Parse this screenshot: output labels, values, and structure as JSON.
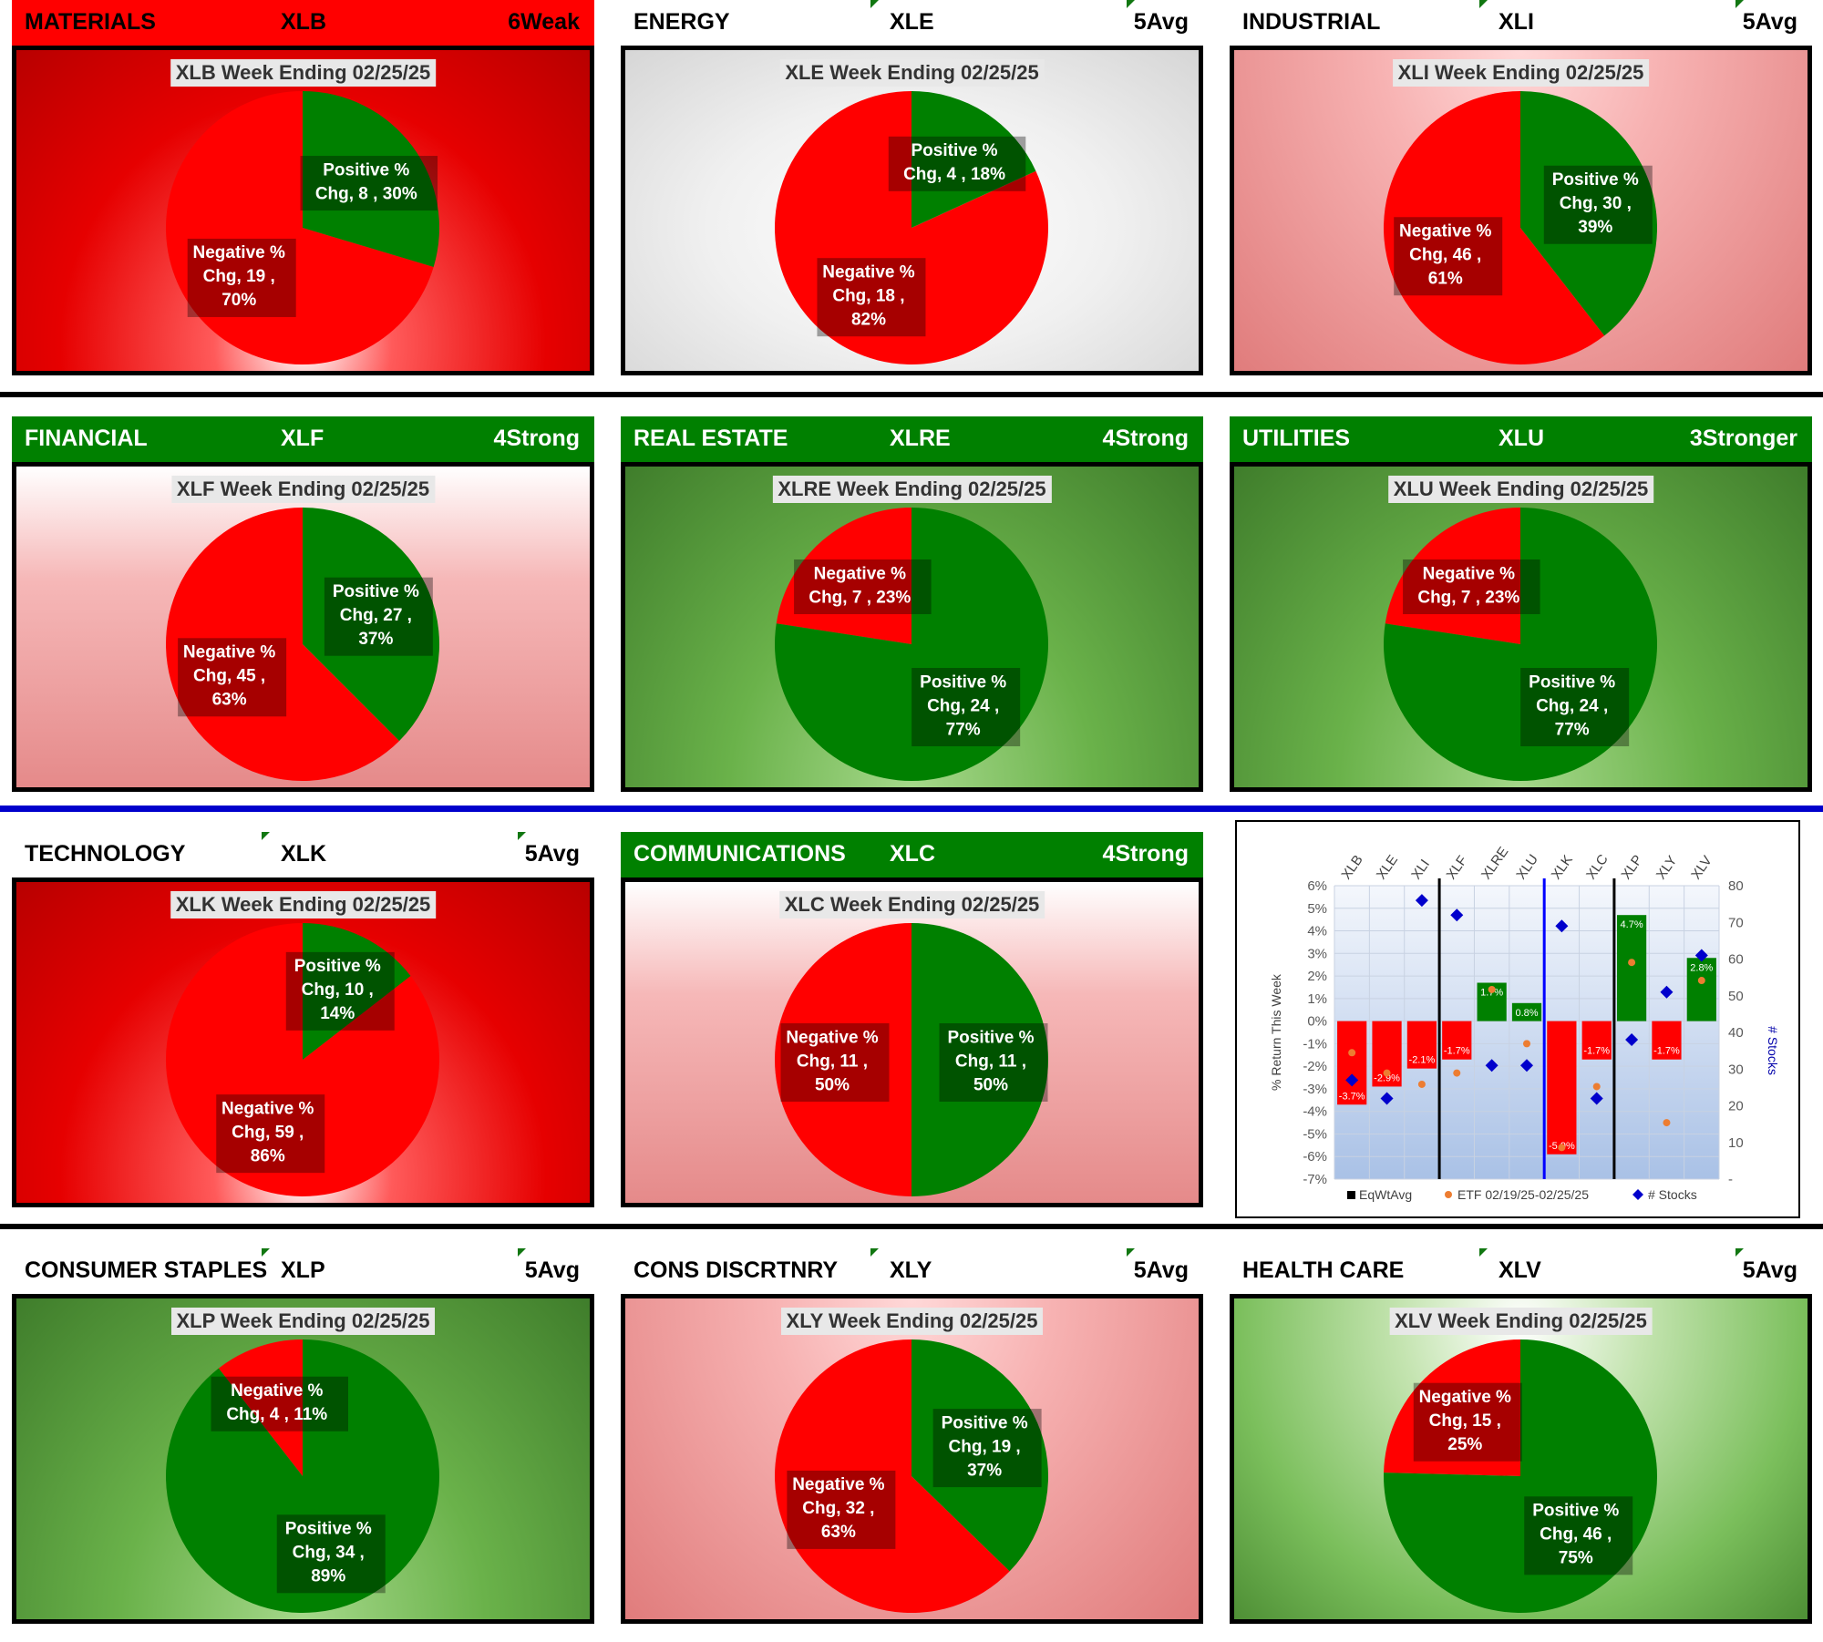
{
  "panels": [
    {
      "sector": "MATERIALS",
      "ticker": "XLB",
      "rating": "6Weak",
      "title": "XLB Week Ending 02/25/25",
      "positive_count": 8,
      "negative_count": 19,
      "positive_label": [
        "Positive %",
        "Chg,  8 , 30%"
      ],
      "negative_label": [
        "Negative %",
        "Chg,  19 ,",
        "70%"
      ]
    },
    {
      "sector": "ENERGY",
      "ticker": "XLE",
      "rating": "5Avg",
      "title": "XLE Week Ending 02/25/25",
      "positive_count": 4,
      "negative_count": 18,
      "positive_label": [
        "Positive %",
        "Chg,  4 , 18%"
      ],
      "negative_label": [
        "Negative %",
        "Chg,  18 ,",
        "82%"
      ]
    },
    {
      "sector": "INDUSTRIAL",
      "ticker": "XLI",
      "rating": "5Avg",
      "title": "XLI Week Ending 02/25/25",
      "positive_count": 30,
      "negative_count": 46,
      "positive_label": [
        "Positive %",
        "Chg,  30 ,",
        "39%"
      ],
      "negative_label": [
        "Negative %",
        "Chg,  46 ,",
        "61%"
      ]
    },
    {
      "sector": "FINANCIAL",
      "ticker": "XLF",
      "rating": "4Strong",
      "title": "XLF Week Ending 02/25/25",
      "positive_count": 27,
      "negative_count": 45,
      "positive_label": [
        "Positive %",
        "Chg,  27 ,",
        "37%"
      ],
      "negative_label": [
        "Negative %",
        "Chg,  45 ,",
        "63%"
      ]
    },
    {
      "sector": "REAL ESTATE",
      "ticker": "XLRE",
      "rating": "4Strong",
      "title": "XLRE Week Ending 02/25/25",
      "positive_count": 24,
      "negative_count": 7,
      "positive_label": [
        "Positive %",
        "Chg,  24 ,",
        "77%"
      ],
      "negative_label": [
        "Negative %",
        "Chg,  7 , 23%"
      ]
    },
    {
      "sector": "UTILITIES",
      "ticker": "XLU",
      "rating": "3Stronger",
      "title": "XLU Week Ending 02/25/25",
      "positive_count": 24,
      "negative_count": 7,
      "positive_label": [
        "Positive %",
        "Chg,  24 ,",
        "77%"
      ],
      "negative_label": [
        "Negative %",
        "Chg,  7 , 23%"
      ]
    },
    {
      "sector": "TECHNOLOGY",
      "ticker": "XLK",
      "rating": "5Avg",
      "title": "XLK Week Ending 02/25/25",
      "positive_count": 10,
      "negative_count": 59,
      "positive_label": [
        "Positive %",
        "Chg,  10 ,",
        "14%"
      ],
      "negative_label": [
        "Negative %",
        "Chg,  59 ,",
        "86%"
      ]
    },
    {
      "sector": "COMMUNICATIONS",
      "ticker": "XLC",
      "rating": "4Strong",
      "title": "XLC Week Ending 02/25/25",
      "positive_count": 11,
      "negative_count": 11,
      "positive_label": [
        "Positive %",
        "Chg,  11 ,",
        "50%"
      ],
      "negative_label": [
        "Negative %",
        "Chg,  11 ,",
        "50%"
      ]
    },
    null,
    {
      "sector": "CONSUMER STAPLES",
      "ticker": "XLP",
      "rating": "5Avg",
      "title": "XLP Week Ending 02/25/25",
      "positive_count": 34,
      "negative_count": 4,
      "positive_label": [
        "Positive %",
        "Chg,  34 ,",
        "89%"
      ],
      "negative_label": [
        "Negative %",
        "Chg,  4 , 11%"
      ]
    },
    {
      "sector": "CONS DISCRTNRY",
      "ticker": "XLY",
      "rating": "5Avg",
      "title": "XLY Week Ending 02/25/25",
      "positive_count": 19,
      "negative_count": 32,
      "positive_label": [
        "Positive %",
        "Chg,  19 ,",
        "37%"
      ],
      "negative_label": [
        "Negative %",
        "Chg,  32 ,",
        "63%"
      ]
    },
    {
      "sector": "HEALTH CARE",
      "ticker": "XLV",
      "rating": "5Avg",
      "title": "XLV Week Ending 02/25/25",
      "positive_count": 46,
      "negative_count": 15,
      "positive_label": [
        "Positive %",
        "Chg,  46 ,",
        "75%"
      ],
      "negative_label": [
        "Negative %",
        "Chg,  15 ,",
        "25%"
      ]
    }
  ],
  "colors": {
    "positive": "#008000",
    "negative": "#ff0000",
    "stocks_marker": "#0000cc",
    "etf_marker": "#ed7d31"
  },
  "chart_data": {
    "type": "bar",
    "categories": [
      "XLB",
      "XLE",
      "XLI",
      "XLF",
      "XLRE",
      "XLU",
      "XLK",
      "XLC",
      "XLP",
      "XLY",
      "XLV"
    ],
    "series": [
      {
        "name": "EqWtAvg",
        "type": "bar",
        "axis": "left",
        "values": [
          -3.7,
          -2.9,
          -2.1,
          -1.7,
          1.7,
          0.8,
          -5.9,
          -1.7,
          4.7,
          -1.7,
          2.8
        ],
        "data_labels": [
          "-3.7%",
          "-2.9%",
          "-2.1%",
          "-1.7%",
          "1.7%",
          "0.8%",
          "-5.9%",
          "-1.7%",
          "4.7%",
          "-1.7%",
          "2.8%"
        ]
      },
      {
        "name": "ETF 02/19/25-02/25/25",
        "type": "scatter",
        "axis": "left",
        "values": [
          -1.4,
          -2.3,
          -2.8,
          -2.3,
          1.4,
          -1.0,
          -5.6,
          -2.9,
          2.6,
          -4.5,
          1.8
        ]
      },
      {
        "name": "# Stocks",
        "type": "scatter",
        "axis": "right",
        "values": [
          27,
          22,
          76,
          72,
          31,
          31,
          69,
          22,
          38,
          51,
          61
        ]
      }
    ],
    "ylabel": "% Return This Week",
    "y2label": "# Stocks",
    "ylim": [
      -7,
      6
    ],
    "y2lim": [
      0,
      80
    ],
    "yticks": [
      "6%",
      "5%",
      "4%",
      "3%",
      "2%",
      "1%",
      "0%",
      "-1%",
      "-2%",
      "-3%",
      "-4%",
      "-5%",
      "-6%",
      "-7%"
    ],
    "y2ticks": [
      "80",
      "70",
      "60",
      "50",
      "40",
      "30",
      "20",
      "10",
      "-"
    ],
    "legend": [
      "EqWtAvg",
      "ETF 02/19/25-02/25/25",
      "# Stocks"
    ],
    "legend_position": "bottom"
  }
}
